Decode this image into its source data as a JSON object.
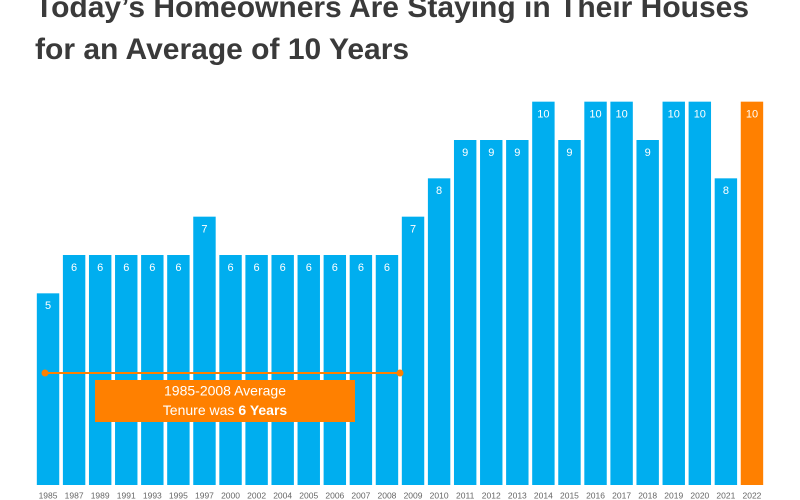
{
  "chart_data": {
    "type": "bar",
    "title": "Today’s Homeowners Are Staying in Their Houses for an Average of 10 Years",
    "categories": [
      "1985",
      "1987",
      "1989",
      "1991",
      "1993",
      "1995",
      "1997",
      "2000",
      "2002",
      "2004",
      "2005",
      "2006",
      "2007",
      "2008",
      "2009",
      "2010",
      "2011",
      "2012",
      "2013",
      "2014",
      "2015",
      "2016",
      "2017",
      "2018",
      "2019",
      "2020",
      "2021",
      "2022"
    ],
    "values": [
      5,
      6,
      6,
      6,
      6,
      6,
      7,
      6,
      6,
      6,
      6,
      6,
      6,
      6,
      7,
      8,
      9,
      9,
      9,
      10,
      9,
      10,
      10,
      9,
      10,
      10,
      8,
      10
    ],
    "colors": [
      "#00aeef",
      "#00aeef",
      "#00aeef",
      "#00aeef",
      "#00aeef",
      "#00aeef",
      "#00aeef",
      "#00aeef",
      "#00aeef",
      "#00aeef",
      "#00aeef",
      "#00aeef",
      "#00aeef",
      "#00aeef",
      "#00aeef",
      "#00aeef",
      "#00aeef",
      "#00aeef",
      "#00aeef",
      "#00aeef",
      "#00aeef",
      "#00aeef",
      "#00aeef",
      "#00aeef",
      "#00aeef",
      "#00aeef",
      "#00aeef",
      "#ff8000"
    ],
    "ylim": [
      0,
      10.2
    ],
    "annotation": {
      "lines": [
        "1985-2008 Average",
        "Tenure was",
        "6 Years"
      ],
      "color": "#ff8000"
    }
  }
}
